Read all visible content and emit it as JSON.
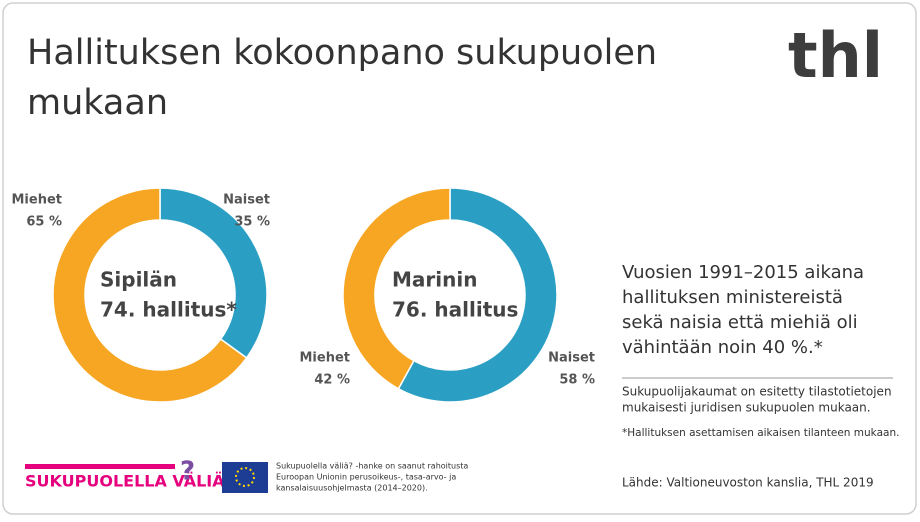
{
  "header": {
    "title_lines": [
      "Hallituksen kokoonpano sukupuolen",
      "mukaan"
    ],
    "logo": "thl"
  },
  "chart_data": [
    {
      "type": "donut",
      "center_text": [
        "Sipilän",
        "74. hallitus*"
      ],
      "categories": [
        "Naiset",
        "Miehet"
      ],
      "values": [
        35,
        65
      ],
      "value_labels": [
        "35 %",
        "65 %"
      ],
      "colors": [
        "#2b9fc3",
        "#f6a623"
      ]
    },
    {
      "type": "donut",
      "center_text": [
        "Marinin",
        "76. hallitus"
      ],
      "categories": [
        "Naiset",
        "Miehet"
      ],
      "values": [
        58,
        42
      ],
      "value_labels": [
        "58 %",
        "42 %"
      ],
      "colors": [
        "#2b9fc3",
        "#f6a623"
      ]
    }
  ],
  "info": {
    "lines": [
      "Vuosien 1991–2015 aikana",
      "hallituksen ministereistä",
      "sekä naisia että miehiä oli",
      "vähintään noin 40 %.*"
    ],
    "note_lines": [
      "Sukupuolijakaumat on esitetty tilastotietojen",
      "mukaisesti juridisen sukupuolen mukaan."
    ],
    "footnote": "*Hallituksen asettamisen aikaisen tilanteen mukaan.",
    "source": "Lähde: Valtioneuvoston kanslia, THL 2019"
  },
  "footer": {
    "logo_text": "SUKUPUOLELLA VÄLIÄ",
    "eu_lines": [
      "Sukupuolella väliä? -hanke on saanut rahoitusta",
      "Euroopan Unionin perusoikeus-, tasa-arvo- ja",
      "kansalaisuusohjelmasta (2014–2020)."
    ]
  }
}
